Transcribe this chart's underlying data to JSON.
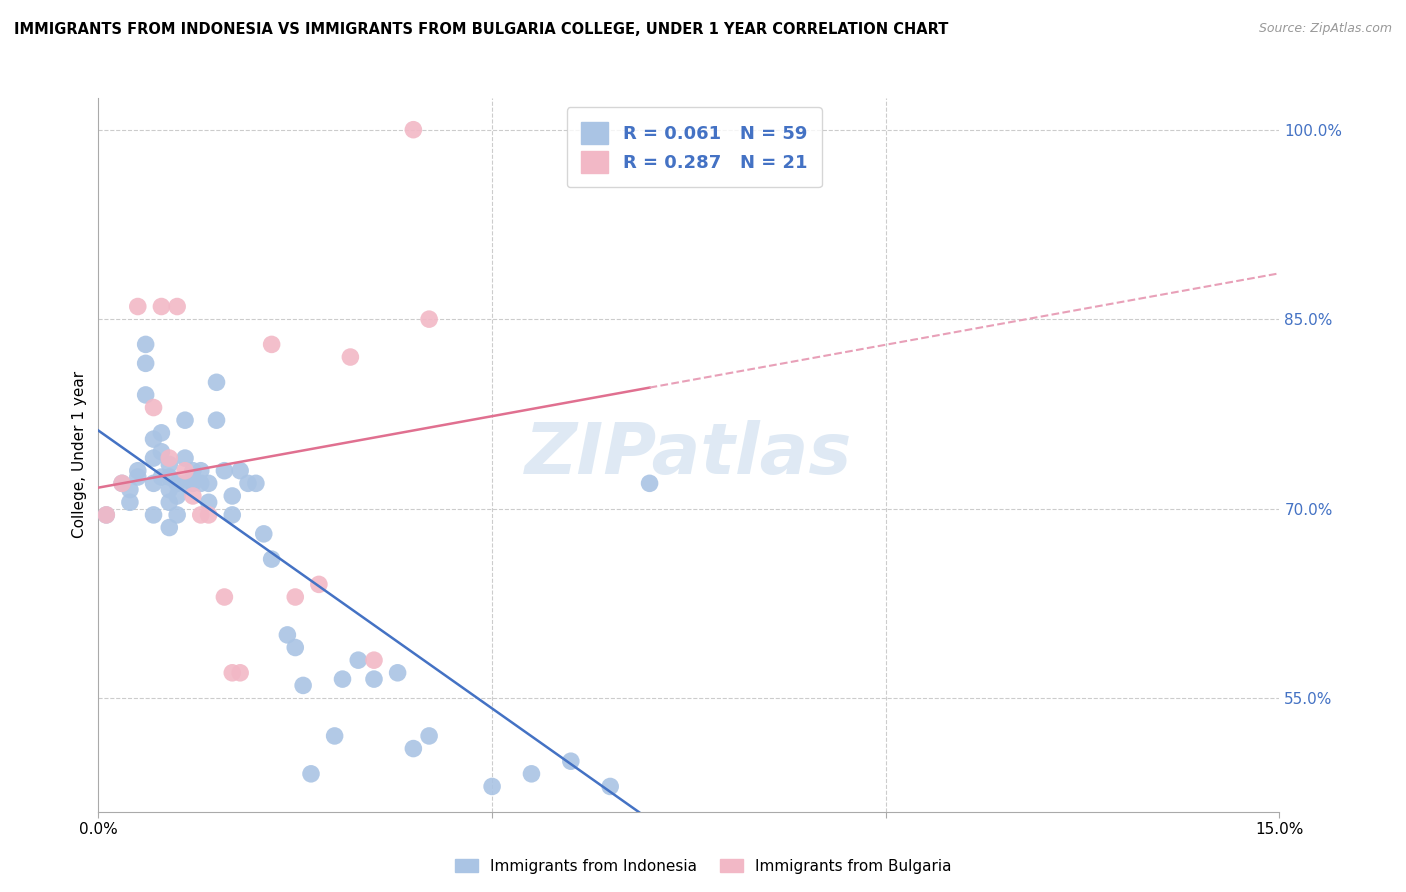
{
  "title": "IMMIGRANTS FROM INDONESIA VS IMMIGRANTS FROM BULGARIA COLLEGE, UNDER 1 YEAR CORRELATION CHART",
  "source": "Source: ZipAtlas.com",
  "ylabel": "College, Under 1 year",
  "xlim": [
    0.0,
    0.15
  ],
  "ylim": [
    0.46,
    1.025
  ],
  "yticks": [
    0.55,
    0.7,
    0.85,
    1.0
  ],
  "yticklabels": [
    "55.0%",
    "70.0%",
    "85.0%",
    "100.0%"
  ],
  "watermark": "ZIPatlas",
  "legend_r1": "R = 0.061",
  "legend_n1": "N = 59",
  "legend_r2": "R = 0.287",
  "legend_n2": "N = 21",
  "blue_color": "#aac4e4",
  "pink_color": "#f2b8c6",
  "blue_line_color": "#4472c4",
  "pink_line_color": "#e07090",
  "pink_dash_color": "#e8a0b8",
  "indonesia_x": [
    0.001,
    0.003,
    0.004,
    0.004,
    0.005,
    0.005,
    0.006,
    0.006,
    0.006,
    0.007,
    0.007,
    0.007,
    0.007,
    0.008,
    0.008,
    0.008,
    0.009,
    0.009,
    0.009,
    0.009,
    0.009,
    0.01,
    0.01,
    0.01,
    0.011,
    0.011,
    0.011,
    0.012,
    0.012,
    0.013,
    0.013,
    0.014,
    0.014,
    0.015,
    0.015,
    0.016,
    0.017,
    0.017,
    0.018,
    0.019,
    0.02,
    0.021,
    0.022,
    0.024,
    0.025,
    0.026,
    0.027,
    0.03,
    0.031,
    0.033,
    0.035,
    0.038,
    0.04,
    0.042,
    0.05,
    0.055,
    0.06,
    0.065,
    0.07
  ],
  "indonesia_y": [
    0.695,
    0.72,
    0.715,
    0.705,
    0.73,
    0.725,
    0.83,
    0.815,
    0.79,
    0.755,
    0.74,
    0.72,
    0.695,
    0.76,
    0.745,
    0.725,
    0.735,
    0.725,
    0.715,
    0.705,
    0.685,
    0.72,
    0.71,
    0.695,
    0.77,
    0.74,
    0.72,
    0.73,
    0.72,
    0.73,
    0.72,
    0.72,
    0.705,
    0.8,
    0.77,
    0.73,
    0.71,
    0.695,
    0.73,
    0.72,
    0.72,
    0.68,
    0.66,
    0.6,
    0.59,
    0.56,
    0.49,
    0.52,
    0.565,
    0.58,
    0.565,
    0.57,
    0.51,
    0.52,
    0.48,
    0.49,
    0.5,
    0.48,
    0.72
  ],
  "bulgaria_x": [
    0.001,
    0.003,
    0.005,
    0.007,
    0.008,
    0.009,
    0.01,
    0.011,
    0.012,
    0.013,
    0.014,
    0.016,
    0.017,
    0.018,
    0.022,
    0.025,
    0.028,
    0.032,
    0.035,
    0.04,
    0.042
  ],
  "bulgaria_y": [
    0.695,
    0.72,
    0.86,
    0.78,
    0.86,
    0.74,
    0.86,
    0.73,
    0.71,
    0.695,
    0.695,
    0.63,
    0.57,
    0.57,
    0.83,
    0.63,
    0.64,
    0.82,
    0.58,
    1.0,
    0.85
  ]
}
